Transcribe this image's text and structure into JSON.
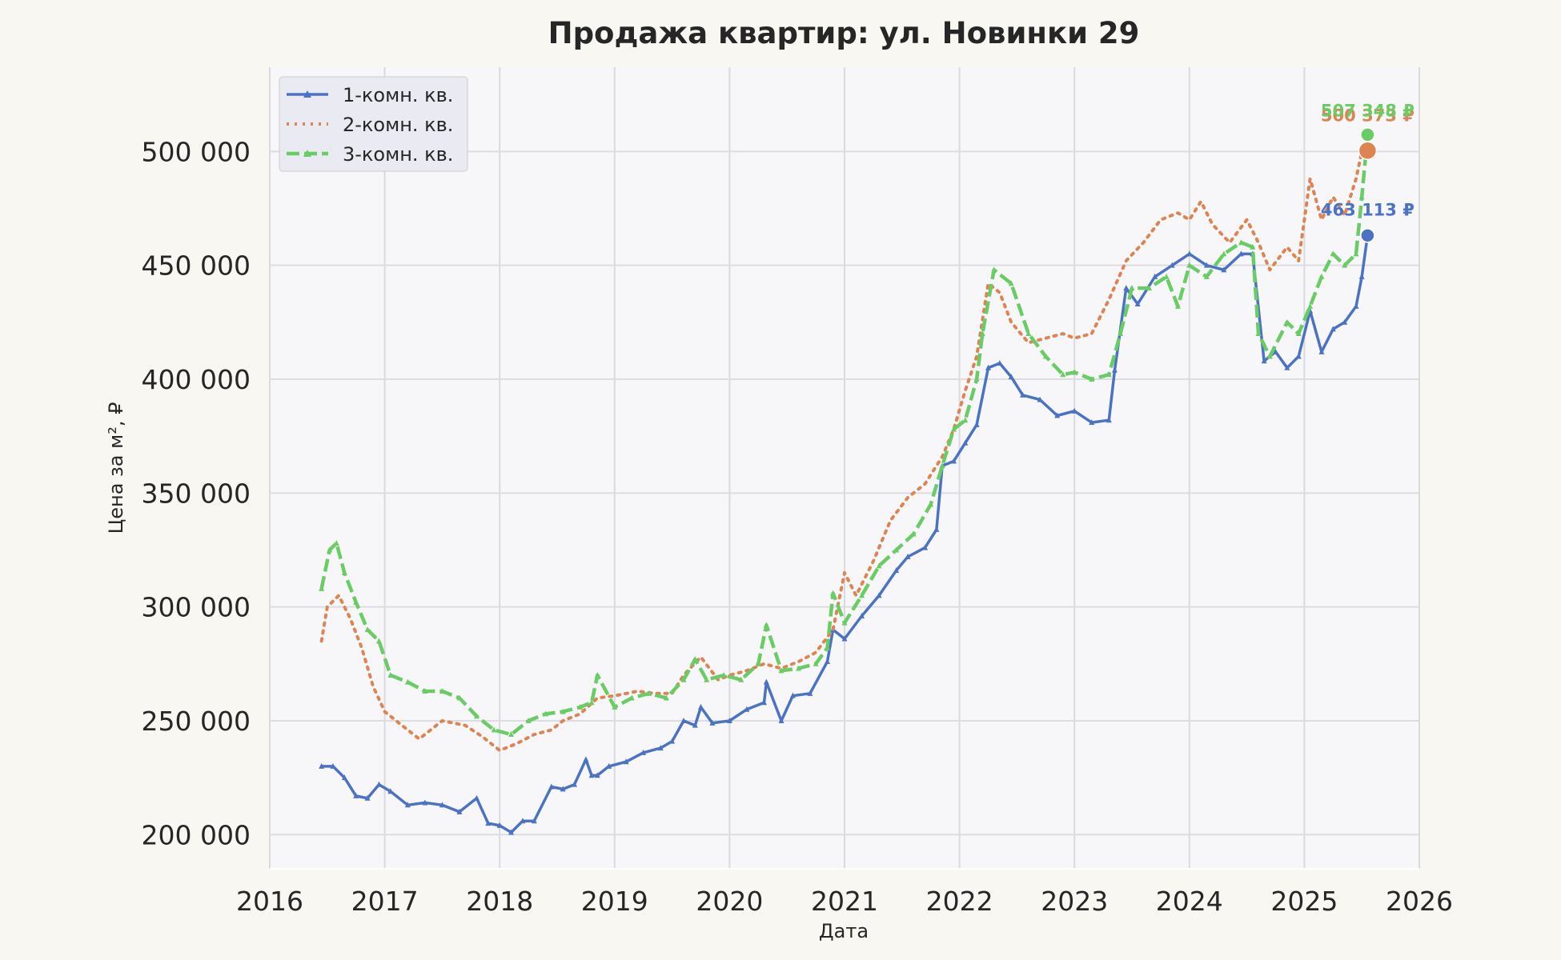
{
  "chart_data": {
    "type": "line",
    "title": "Продажа квартир: ул. Новинки 29",
    "xlabel": "Дата",
    "ylabel": "Цена за м², ₽",
    "xlim": [
      2016.0,
      2026.0
    ],
    "ylim": [
      185000,
      537000
    ],
    "x_ticks": [
      2016,
      2017,
      2018,
      2019,
      2020,
      2021,
      2022,
      2023,
      2024,
      2025,
      2026
    ],
    "y_ticks": [
      200000,
      250000,
      300000,
      350000,
      400000,
      450000,
      500000
    ],
    "y_tick_labels": [
      "200 000",
      "250 000",
      "300 000",
      "350 000",
      "400 000",
      "450 000",
      "500 000"
    ],
    "grid": true,
    "legend_position": "top-left",
    "series": [
      {
        "name": "1-комн. кв.",
        "color": "#4c72c4",
        "style": "solid-triangle-markers",
        "x": [
          2016.45,
          2016.55,
          2016.65,
          2016.75,
          2016.85,
          2016.95,
          2017.05,
          2017.2,
          2017.35,
          2017.5,
          2017.65,
          2017.8,
          2017.9,
          2018.0,
          2018.1,
          2018.2,
          2018.3,
          2018.45,
          2018.55,
          2018.65,
          2018.75,
          2018.8,
          2018.85,
          2018.95,
          2019.1,
          2019.25,
          2019.4,
          2019.5,
          2019.6,
          2019.7,
          2019.75,
          2019.85,
          2020.0,
          2020.15,
          2020.3,
          2020.32,
          2020.45,
          2020.55,
          2020.7,
          2020.85,
          2020.9,
          2021.0,
          2021.15,
          2021.3,
          2021.45,
          2021.55,
          2021.7,
          2021.8,
          2021.85,
          2021.95,
          2022.05,
          2022.15,
          2022.25,
          2022.35,
          2022.45,
          2022.55,
          2022.7,
          2022.85,
          2023.0,
          2023.15,
          2023.3,
          2023.35,
          2023.45,
          2023.55,
          2023.7,
          2023.85,
          2024.0,
          2024.15,
          2024.3,
          2024.45,
          2024.55,
          2024.65,
          2024.75,
          2024.85,
          2024.95,
          2025.05,
          2025.15,
          2025.25,
          2025.35,
          2025.45,
          2025.5,
          2025.55
        ],
        "values": [
          230000,
          230000,
          225000,
          217000,
          216000,
          222000,
          219000,
          213000,
          214000,
          213000,
          210000,
          216000,
          205000,
          204000,
          201000,
          206000,
          206000,
          221000,
          220000,
          222000,
          233000,
          226000,
          226000,
          230000,
          232000,
          236000,
          238000,
          241000,
          250000,
          248000,
          256000,
          249000,
          250000,
          255000,
          258000,
          267000,
          250000,
          261000,
          262000,
          276000,
          290000,
          286000,
          296000,
          305000,
          316000,
          322000,
          326000,
          334000,
          362000,
          364000,
          372000,
          380000,
          405000,
          407000,
          401000,
          393000,
          391000,
          384000,
          386000,
          381000,
          382000,
          404000,
          440000,
          433000,
          445000,
          450000,
          455000,
          450000,
          448000,
          455000,
          455000,
          408000,
          412000,
          405000,
          410000,
          430000,
          412000,
          422000,
          425000,
          432000,
          445000,
          463113
        ]
      },
      {
        "name": "2-комн. кв.",
        "color": "#dd8452",
        "style": "dotted",
        "x": [
          2016.45,
          2016.5,
          2016.6,
          2016.7,
          2016.8,
          2016.9,
          2017.0,
          2017.15,
          2017.3,
          2017.5,
          2017.7,
          2017.85,
          2018.0,
          2018.15,
          2018.3,
          2018.45,
          2018.55,
          2018.7,
          2018.85,
          2019.0,
          2019.2,
          2019.35,
          2019.5,
          2019.6,
          2019.75,
          2019.9,
          2020.0,
          2020.15,
          2020.3,
          2020.45,
          2020.6,
          2020.75,
          2020.9,
          2021.0,
          2021.1,
          2021.25,
          2021.4,
          2021.55,
          2021.7,
          2021.85,
          2021.95,
          2022.05,
          2022.15,
          2022.25,
          2022.35,
          2022.45,
          2022.6,
          2022.75,
          2022.9,
          2023.0,
          2023.15,
          2023.3,
          2023.45,
          2023.6,
          2023.75,
          2023.9,
          2024.0,
          2024.1,
          2024.2,
          2024.35,
          2024.5,
          2024.6,
          2024.7,
          2024.85,
          2024.95,
          2025.05,
          2025.15,
          2025.25,
          2025.35,
          2025.45,
          2025.5,
          2025.55
        ],
        "values": [
          285000,
          300000,
          305000,
          295000,
          282000,
          265000,
          254000,
          248000,
          242000,
          250000,
          248000,
          243000,
          237000,
          240000,
          244000,
          246000,
          250000,
          253000,
          260000,
          261000,
          263000,
          262000,
          262000,
          270000,
          278000,
          268000,
          270000,
          272000,
          275000,
          273000,
          276000,
          280000,
          290000,
          315000,
          305000,
          320000,
          338000,
          348000,
          354000,
          366000,
          378000,
          395000,
          410000,
          442000,
          438000,
          425000,
          416000,
          418000,
          420000,
          418000,
          420000,
          435000,
          452000,
          460000,
          470000,
          473000,
          470000,
          478000,
          468000,
          460000,
          470000,
          460000,
          448000,
          458000,
          452000,
          488000,
          470000,
          480000,
          472000,
          488000,
          500000,
          500373
        ]
      },
      {
        "name": "3-комн. кв.",
        "color": "#6acc65",
        "style": "dashed-triangle-markers",
        "x": [
          2016.45,
          2016.52,
          2016.58,
          2016.65,
          2016.75,
          2016.85,
          2016.95,
          2017.05,
          2017.2,
          2017.35,
          2017.5,
          2017.65,
          2017.8,
          2017.95,
          2018.1,
          2018.25,
          2018.4,
          2018.55,
          2018.7,
          2018.8,
          2018.85,
          2019.0,
          2019.15,
          2019.3,
          2019.45,
          2019.6,
          2019.7,
          2019.8,
          2019.95,
          2020.1,
          2020.25,
          2020.32,
          2020.45,
          2020.6,
          2020.75,
          2020.85,
          2020.9,
          2021.0,
          2021.15,
          2021.3,
          2021.45,
          2021.6,
          2021.75,
          2021.85,
          2021.95,
          2022.05,
          2022.15,
          2022.2,
          2022.3,
          2022.45,
          2022.6,
          2022.75,
          2022.9,
          2023.0,
          2023.15,
          2023.3,
          2023.4,
          2023.5,
          2023.65,
          2023.8,
          2023.9,
          2024.0,
          2024.15,
          2024.3,
          2024.45,
          2024.55,
          2024.6,
          2024.7,
          2024.85,
          2024.95,
          2025.05,
          2025.15,
          2025.25,
          2025.35,
          2025.45,
          2025.5,
          2025.55
        ],
        "values": [
          308000,
          325000,
          328000,
          315000,
          302000,
          290000,
          285000,
          270000,
          267000,
          263000,
          263000,
          260000,
          252000,
          246000,
          244000,
          250000,
          253000,
          254000,
          256000,
          258000,
          270000,
          256000,
          260000,
          262000,
          260000,
          268000,
          277000,
          268000,
          270000,
          268000,
          275000,
          292000,
          272000,
          273000,
          275000,
          282000,
          306000,
          293000,
          305000,
          318000,
          325000,
          332000,
          345000,
          362000,
          378000,
          382000,
          400000,
          420000,
          448000,
          442000,
          420000,
          410000,
          402000,
          403000,
          400000,
          402000,
          420000,
          440000,
          440000,
          445000,
          432000,
          450000,
          445000,
          455000,
          460000,
          458000,
          420000,
          410000,
          425000,
          420000,
          432000,
          445000,
          455000,
          450000,
          455000,
          480000,
          507348
        ]
      }
    ],
    "end_labels": [
      "463 113 ₽",
      "500 373 ₽",
      "507 348 ₽"
    ]
  }
}
